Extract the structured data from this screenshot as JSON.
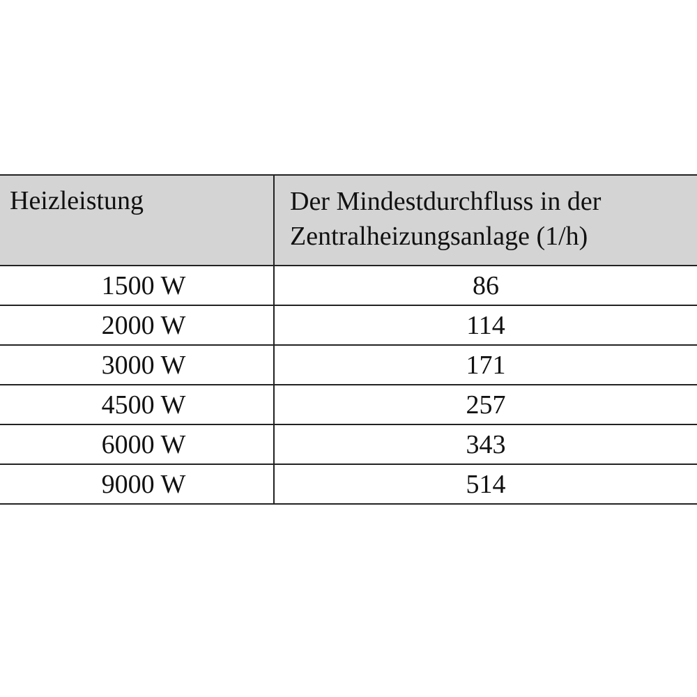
{
  "table": {
    "headers": [
      "Heizleistung",
      "Der Mindestdurchfluss in der Zentralheizungsanlage (1/h)"
    ],
    "rows": [
      [
        "1500 W",
        "86"
      ],
      [
        "2000 W",
        "114"
      ],
      [
        "3000 W",
        "171"
      ],
      [
        "4500 W",
        "257"
      ],
      [
        "6000 W",
        "343"
      ],
      [
        "9000 W",
        "514"
      ]
    ]
  },
  "colors": {
    "header_background": "#d4d4d4",
    "border": "#222222"
  }
}
